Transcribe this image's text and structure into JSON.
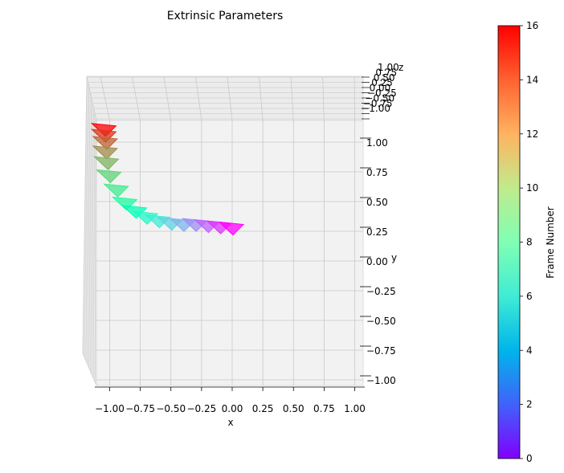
{
  "chart_data": {
    "type": "scatter",
    "title": "Extrinsic Parameters",
    "xlabel": "x",
    "ylabel": "y",
    "zlabel": "z",
    "x_ticks": [
      -1.0,
      -0.75,
      -0.5,
      -0.25,
      0.0,
      0.25,
      0.5,
      0.75,
      1.0
    ],
    "x_tick_labels": [
      "−1.00",
      "−0.75",
      "−0.50",
      "−0.25",
      "0.00",
      "0.25",
      "0.50",
      "0.75",
      "1.00"
    ],
    "y_ticks": [
      1.0,
      0.75,
      0.5,
      0.25,
      0.0,
      -0.25,
      -0.5,
      -0.75,
      -1.0
    ],
    "y_tick_labels": [
      "1.00",
      "0.75",
      "0.50",
      "0.25",
      "0.00",
      "−0.25",
      "−0.50",
      "−0.75",
      "−1.00"
    ],
    "z_tick_labels": [
      "1.00",
      "0.75",
      "0.50",
      "0.25",
      "0.00",
      "−0.25",
      "−0.50",
      "−0.75",
      "−1.00"
    ],
    "xlim": [
      -1.0,
      1.0
    ],
    "ylim": [
      -1.0,
      1.0
    ],
    "grid": true,
    "colorbar": {
      "label": "Frame Number",
      "min": 0,
      "max": 16,
      "ticks": [
        0,
        2,
        4,
        6,
        8,
        10,
        12,
        14,
        16
      ],
      "colormap": "rainbow"
    },
    "frames": [
      {
        "frame": 0,
        "x": 0.0,
        "y": 0.28
      },
      {
        "frame": 1,
        "x": -0.1,
        "y": 0.29
      },
      {
        "frame": 2,
        "x": -0.2,
        "y": 0.3
      },
      {
        "frame": 3,
        "x": -0.3,
        "y": 0.31
      },
      {
        "frame": 4,
        "x": -0.4,
        "y": 0.31
      },
      {
        "frame": 5,
        "x": -0.5,
        "y": 0.32
      },
      {
        "frame": 6,
        "x": -0.6,
        "y": 0.34
      },
      {
        "frame": 7,
        "x": -0.7,
        "y": 0.37
      },
      {
        "frame": 8,
        "x": -0.79,
        "y": 0.42
      },
      {
        "frame": 9,
        "x": -0.87,
        "y": 0.49
      },
      {
        "frame": 10,
        "x": -0.94,
        "y": 0.6
      },
      {
        "frame": 11,
        "x": -1.0,
        "y": 0.72
      },
      {
        "frame": 12,
        "x": -1.02,
        "y": 0.83
      },
      {
        "frame": 13,
        "x": -1.03,
        "y": 0.92
      },
      {
        "frame": 14,
        "x": -1.03,
        "y": 1.0
      },
      {
        "frame": 15,
        "x": -1.04,
        "y": 1.06
      },
      {
        "frame": 16,
        "x": -1.04,
        "y": 1.11
      }
    ]
  }
}
